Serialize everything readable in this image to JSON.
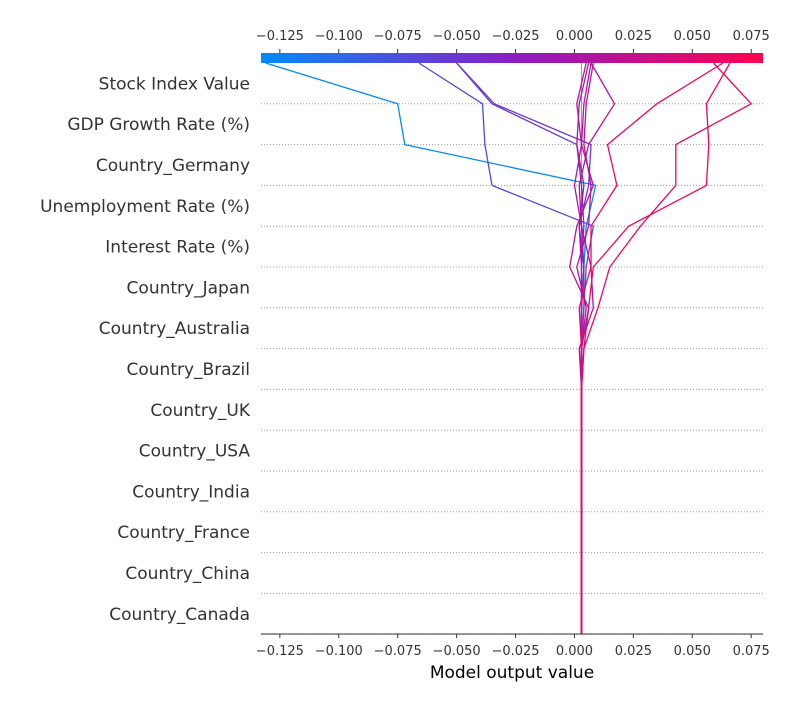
{
  "chart_data": {
    "type": "line",
    "variant": "shap-decision-plot",
    "xlabel": "Model output value",
    "xlim": [
      -0.133,
      0.08
    ],
    "x_ticks": [
      -0.125,
      -0.1,
      -0.075,
      -0.05,
      -0.025,
      0.0,
      0.025,
      0.05,
      0.075
    ],
    "x_tick_labels": [
      "−0.125",
      "−0.100",
      "−0.075",
      "−0.050",
      "−0.025",
      "0.000",
      "0.025",
      "0.050",
      "0.075"
    ],
    "base_value": 0.003,
    "colorbar": {
      "from": "#008bfb",
      "mid": "#8b1ec4",
      "to": "#ff0051"
    },
    "features": [
      "Stock Index Value",
      "GDP Growth Rate (%)",
      "Country_Germany",
      "Unemployment Rate (%)",
      "Interest Rate (%)",
      "Country_Japan",
      "Country_Australia",
      "Country_Brazil",
      "Country_UK",
      "Country_USA",
      "Country_India",
      "Country_France",
      "Country_China",
      "Country_Canada"
    ],
    "series": [
      {
        "values": [
          -0.131,
          -0.075,
          -0.072,
          0.009,
          0.005,
          0.004,
          0.004,
          0.003,
          0.003,
          0.003,
          0.003,
          0.003,
          0.003,
          0.003,
          0.003
        ]
      },
      {
        "values": [
          -0.066,
          -0.039,
          -0.038,
          -0.035,
          0.008,
          0.005,
          0.004,
          0.003,
          0.003,
          0.003,
          0.003,
          0.003,
          0.003,
          0.003,
          0.003
        ]
      },
      {
        "values": [
          -0.05,
          -0.035,
          0.001,
          0.003,
          0.004,
          0.003,
          0.003,
          0.003,
          0.003,
          0.003,
          0.003,
          0.003,
          0.003,
          0.003,
          0.003
        ]
      },
      {
        "values": [
          -0.05,
          -0.034,
          0.007,
          0.006,
          0.002,
          0.004,
          0.003,
          0.003,
          0.003,
          0.003,
          0.003,
          0.003,
          0.003,
          0.003,
          0.003
        ]
      },
      {
        "values": [
          0.006,
          0.002,
          0.001,
          0.004,
          0.002,
          0.003,
          0.003,
          0.003,
          0.003,
          0.003,
          0.003,
          0.003,
          0.003,
          0.003,
          0.003
        ]
      },
      {
        "values": [
          0.007,
          0.017,
          0.006,
          0.002,
          0.003,
          0.004,
          0.003,
          0.003,
          0.003,
          0.003,
          0.003,
          0.003,
          0.003,
          0.003,
          0.003
        ]
      },
      {
        "values": [
          0.005,
          0.001,
          0.003,
          0.0,
          0.003,
          0.007,
          0.008,
          0.002,
          0.003,
          0.003,
          0.003,
          0.003,
          0.003,
          0.003,
          0.003
        ]
      },
      {
        "values": [
          0.007,
          0.004,
          0.003,
          0.008,
          0.001,
          -0.002,
          0.006,
          0.004,
          0.003,
          0.003,
          0.003,
          0.003,
          0.003,
          0.003,
          0.003
        ]
      },
      {
        "values": [
          0.008,
          0.005,
          0.004,
          0.007,
          0.006,
          0.001,
          0.005,
          0.003,
          0.003,
          0.003,
          0.003,
          0.003,
          0.003,
          0.003,
          0.003
        ]
      },
      {
        "values": [
          0.063,
          0.035,
          0.014,
          0.018,
          0.007,
          0.007,
          0.002,
          0.003,
          0.003,
          0.003,
          0.003,
          0.003,
          0.003,
          0.003,
          0.003
        ]
      },
      {
        "values": [
          0.059,
          0.075,
          0.043,
          0.043,
          0.028,
          0.015,
          0.01,
          0.004,
          0.003,
          0.003,
          0.003,
          0.003,
          0.003,
          0.003,
          0.003
        ]
      },
      {
        "values": [
          0.066,
          0.056,
          0.057,
          0.056,
          0.023,
          0.008,
          0.006,
          0.003,
          0.003,
          0.003,
          0.003,
          0.003,
          0.003,
          0.003,
          0.003
        ]
      }
    ]
  }
}
